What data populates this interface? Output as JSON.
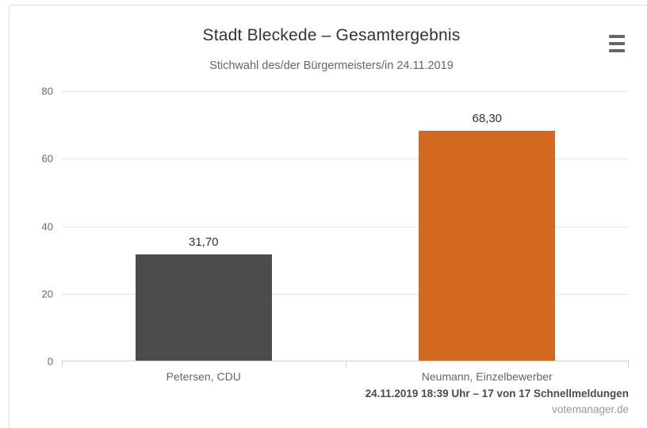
{
  "chart": {
    "title": "Stadt Bleckede – Gesamtergebnis",
    "subtitle": "Stichwahl des/der Bürgermeisters/in 24.11.2019"
  },
  "chart_data": {
    "type": "bar",
    "title": "Stadt Bleckede – Gesamtergebnis",
    "subtitle": "Stichwahl des/der Bürgermeisters/in 24.11.2019",
    "categories": [
      "Petersen, CDU",
      "Neumann, Einzelbewerber"
    ],
    "values": [
      31.7,
      68.3
    ],
    "value_labels": [
      "31,70",
      "68,30"
    ],
    "bar_colors": [
      "#4c4c4c",
      "#d2691e"
    ],
    "bar_names": [
      "bar-petersen-cdu",
      "bar-neumann-einzelbewerber"
    ],
    "xlabel": "",
    "ylabel": "",
    "ylim": [
      0,
      80
    ],
    "yticks": [
      0,
      20,
      40,
      60,
      80
    ],
    "grid": true,
    "legend": "none"
  },
  "menu": {
    "icon": "hamburger-menu-icon"
  },
  "footer": {
    "status": "24.11.2019 18:39 Uhr – 17 von 17 Schnellmeldungen",
    "source": "votemanager.de"
  },
  "colors": {
    "accent_orange": "#d2691e",
    "bar_gray": "#4c4c4c",
    "grid": "#e6e6e6",
    "axis": "#d0d0d0",
    "title_text": "#333333",
    "label_text": "#666666",
    "footer_status_text": "#4a4a4a",
    "footer_source_text": "#999999",
    "card_border": "#dddddd"
  }
}
